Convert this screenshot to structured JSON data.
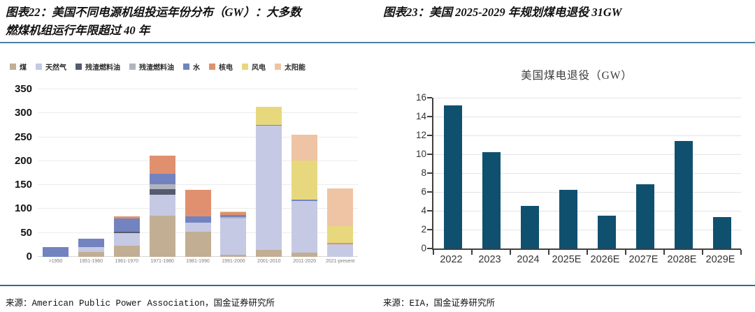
{
  "colors": {
    "divider_top": "#4a81a2",
    "divider_bottom": "#2f6b92",
    "axis": "#3f3f3f",
    "gridline": "#ececec",
    "coal_bar": "#10506f"
  },
  "left_panel": {
    "title_line1": "图表22：美国不同电源机组投运年份分布（GW）：大多数",
    "title_line2": "燃煤机组运行年限超过 40 年",
    "source": "来源：American Public Power Association，国金证券研究所"
  },
  "right_panel": {
    "title": "图表23：美国 2025-2029 年规划煤电退役 31GW",
    "source": "来源：EIA，国金证券研究所"
  },
  "chart_data": [
    {
      "type": "bar",
      "stacked": true,
      "title": "",
      "xlabel": "",
      "ylabel": "",
      "categories": [
        ">1950",
        "1951-1960",
        "1961-1970",
        "1971-1980",
        "1981-1990",
        "1991-2000",
        "2001-2010",
        "2011-2020",
        "2021-present"
      ],
      "series": [
        {
          "name": "煤",
          "color": "#c2ae93",
          "values": [
            0,
            10,
            24,
            86,
            52,
            5,
            15,
            9,
            0
          ]
        },
        {
          "name": "天然气",
          "color": "#c5c9e4",
          "values": [
            0,
            10,
            25,
            44,
            19,
            75,
            259,
            108,
            27
          ]
        },
        {
          "name": "残渣燃料油",
          "color": "#565b6e",
          "values": [
            0,
            0,
            4,
            11,
            0,
            0,
            0,
            0,
            0
          ]
        },
        {
          "name": "残渣燃料油",
          "color": "#b0b4bf",
          "values": [
            0,
            0,
            0,
            11,
            1,
            3,
            0,
            0,
            0
          ]
        },
        {
          "name": "水",
          "color": "#7383c0",
          "values": [
            21,
            18,
            27,
            21,
            13,
            5,
            2,
            2,
            0
          ]
        },
        {
          "name": "核电",
          "color": "#e0906e",
          "values": [
            0,
            0,
            4,
            39,
            55,
            6,
            0,
            0,
            2
          ]
        },
        {
          "name": "风电",
          "color": "#e7d87e",
          "values": [
            0,
            0,
            0,
            0,
            0,
            1,
            37,
            83,
            35
          ]
        },
        {
          "name": "太阳能",
          "color": "#eec4a4",
          "values": [
            0,
            0,
            0,
            0,
            0,
            0,
            0,
            54,
            79
          ]
        }
      ],
      "ylim": [
        0,
        350
      ],
      "yticks": [
        0,
        50,
        100,
        150,
        200,
        250,
        300,
        350
      ],
      "grid": true,
      "legend_position": "top"
    },
    {
      "type": "bar",
      "stacked": false,
      "title": "美国煤电退役（GW）",
      "xlabel": "",
      "ylabel": "",
      "categories": [
        "2022",
        "2023",
        "2024",
        "2025E",
        "2026E",
        "2027E",
        "2028E",
        "2029E"
      ],
      "values": [
        15.2,
        10.2,
        4.5,
        6.2,
        3.5,
        6.8,
        11.4,
        3.3
      ],
      "bar_color": "#10506f",
      "ylim": [
        0,
        16
      ],
      "yticks": [
        0,
        2,
        4,
        6,
        8,
        10,
        12,
        14,
        16
      ],
      "grid": true,
      "legend_position": "none"
    }
  ]
}
